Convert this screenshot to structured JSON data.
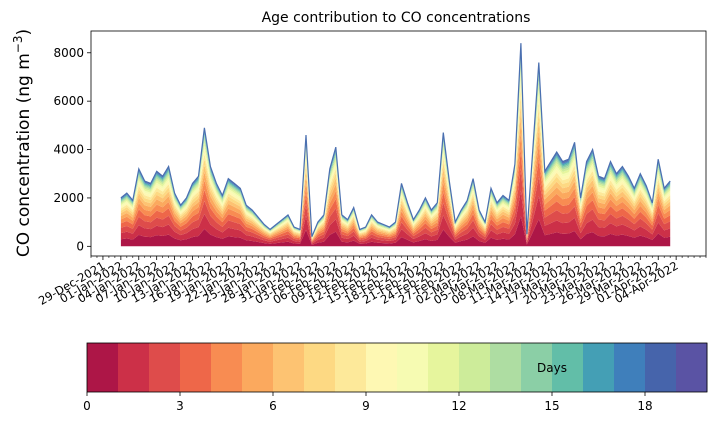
{
  "chart_data": {
    "type": "area",
    "title": "Age contribution to CO concentrations",
    "xlabel": "",
    "ylabel": "CO concentration (ng m",
    "ylabel_sup": "−3",
    "ylabel_close": ")",
    "ylim": [
      -400,
      8900
    ],
    "yticks": [
      0,
      2000,
      4000,
      6000,
      8000
    ],
    "xlim": [
      "2021-12-27",
      "2022-04-09"
    ],
    "xtick_start": "2021-12-29",
    "xtick_step_days": 3,
    "xticklabels": [
      "29-Dec-2021",
      "01-Jan-2022",
      "04-Jan-2022",
      "07-Jan-2022",
      "10-Jan-2022",
      "13-Jan-2022",
      "16-Jan-2022",
      "19-Jan-2022",
      "22-Jan-2022",
      "25-Jan-2022",
      "28-Jan-2022",
      "31-Jan-2022",
      "03-Feb-2022",
      "06-Feb-2022",
      "09-Feb-2022",
      "12-Feb-2022",
      "15-Feb-2022",
      "18-Feb-2022",
      "21-Feb-2022",
      "24-Feb-2022",
      "27-Feb-2022",
      "02-Mar-2022",
      "05-Mar-2022",
      "08-Mar-2022",
      "11-Mar-2022",
      "14-Mar-2022",
      "17-Mar-2022",
      "20-Mar-2022",
      "23-Mar-2022",
      "26-Mar-2022",
      "29-Mar-2022",
      "01-Apr-2022",
      "04-Apr-2022"
    ],
    "series_count": 20,
    "total_series": {
      "x": [
        "2022-01-01",
        "2022-01-02",
        "2022-01-03",
        "2022-01-04",
        "2022-01-05",
        "2022-01-06",
        "2022-01-07",
        "2022-01-08",
        "2022-01-09",
        "2022-01-10",
        "2022-01-11",
        "2022-01-12",
        "2022-01-13",
        "2022-01-14",
        "2022-01-15",
        "2022-01-16",
        "2022-01-17",
        "2022-01-18",
        "2022-01-19",
        "2022-01-20",
        "2022-01-21",
        "2022-01-22",
        "2022-01-23",
        "2022-01-24",
        "2022-01-25",
        "2022-01-26",
        "2022-01-27",
        "2022-01-28",
        "2022-01-29",
        "2022-01-30",
        "2022-01-31",
        "2022-02-01",
        "2022-02-02",
        "2022-02-03",
        "2022-02-04",
        "2022-02-05",
        "2022-02-06",
        "2022-02-07",
        "2022-02-08",
        "2022-02-09",
        "2022-02-10",
        "2022-02-11",
        "2022-02-12",
        "2022-02-13",
        "2022-02-14",
        "2022-02-15",
        "2022-02-16",
        "2022-02-17",
        "2022-02-18",
        "2022-02-19",
        "2022-02-20",
        "2022-02-21",
        "2022-02-22",
        "2022-02-23",
        "2022-02-24",
        "2022-02-25",
        "2022-02-26",
        "2022-02-27",
        "2022-02-28",
        "2022-03-01",
        "2022-03-02",
        "2022-03-03",
        "2022-03-04",
        "2022-03-05",
        "2022-03-06",
        "2022-03-07",
        "2022-03-08",
        "2022-03-09",
        "2022-03-10",
        "2022-03-11",
        "2022-03-12",
        "2022-03-13",
        "2022-03-14",
        "2022-03-15",
        "2022-03-16",
        "2022-03-17",
        "2022-03-18",
        "2022-03-19",
        "2022-03-20",
        "2022-03-21",
        "2022-03-22",
        "2022-03-23",
        "2022-03-24",
        "2022-03-25",
        "2022-03-26",
        "2022-03-27",
        "2022-03-28",
        "2022-03-29",
        "2022-03-30",
        "2022-03-31",
        "2022-04-01",
        "2022-04-02",
        "2022-04-03"
      ],
      "y": [
        2000,
        2200,
        1900,
        3200,
        2700,
        2600,
        3100,
        2900,
        3300,
        2200,
        1700,
        2000,
        2600,
        2900,
        4900,
        3300,
        2600,
        2100,
        2800,
        2600,
        2400,
        1700,
        1500,
        1200,
        900,
        700,
        900,
        1100,
        1300,
        800,
        700,
        4600,
        400,
        1000,
        1300,
        3200,
        4100,
        1300,
        1100,
        1600,
        700,
        800,
        1300,
        1000,
        900,
        800,
        1000,
        2600,
        1800,
        1100,
        1500,
        2000,
        1500,
        1800,
        4700,
        2700,
        1000,
        1500,
        1900,
        2800,
        1500,
        1000,
        2400,
        1800,
        2100,
        1900,
        3400,
        8400,
        500,
        4000,
        7600,
        3100,
        3500,
        3900,
        3500,
        3600,
        4300,
        2000,
        3500,
        4000,
        2900,
        2800,
        3500,
        3000,
        3300,
        2900,
        2400,
        3000,
        2500,
        1800,
        3600,
        2400,
        2700
      ]
    },
    "colorbar": {
      "label": "Days",
      "ticks": [
        0,
        3,
        6,
        9,
        12,
        15,
        18
      ],
      "range": [
        0,
        20
      ],
      "colors": [
        "#ad1647",
        "#cc3048",
        "#de4c4b",
        "#ee6749",
        "#f88c52",
        "#fba95e",
        "#fdc372",
        "#fdd983",
        "#fde99a",
        "#fef8b3",
        "#f6fbb2",
        "#e6f59d",
        "#cdec9a",
        "#aedda2",
        "#8bcfa6",
        "#62bea8",
        "#449fb5",
        "#3f7fbb",
        "#4664ab",
        "#5a53a4"
      ]
    }
  }
}
